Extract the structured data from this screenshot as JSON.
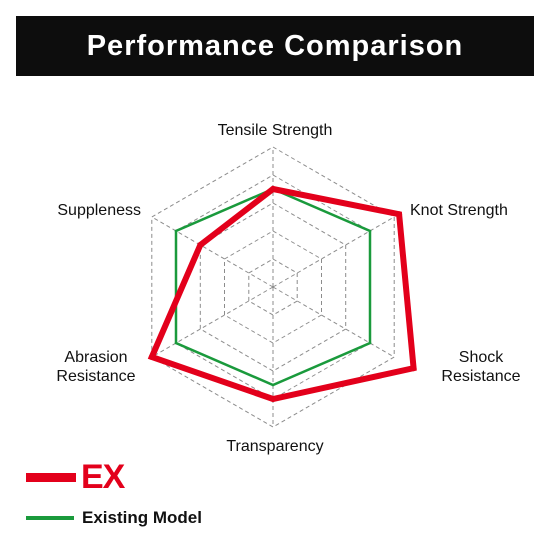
{
  "title": "Performance Comparison",
  "colors": {
    "ex": "#e3001b",
    "existing": "#1a9a3c",
    "grid": "#8c8c8c",
    "title_bg": "#0d0d0d"
  },
  "chart_data": {
    "type": "radar",
    "axes": [
      "Tensile Strength",
      "Knot Strength",
      "Shock Resistance",
      "Transparency",
      "Abrasion Resistance",
      "Suppleness"
    ],
    "rlim": [
      0,
      5
    ],
    "grid_levels": 5,
    "series": [
      {
        "name": "EX",
        "values": [
          3.5,
          5.2,
          5.8,
          4.0,
          5.0,
          3.0
        ]
      },
      {
        "name": "Existing Model",
        "values": [
          3.5,
          4.0,
          4.0,
          3.5,
          4.0,
          4.0
        ]
      }
    ]
  },
  "legend": {
    "ex_label": "EX",
    "existing_label": "Existing Model"
  }
}
